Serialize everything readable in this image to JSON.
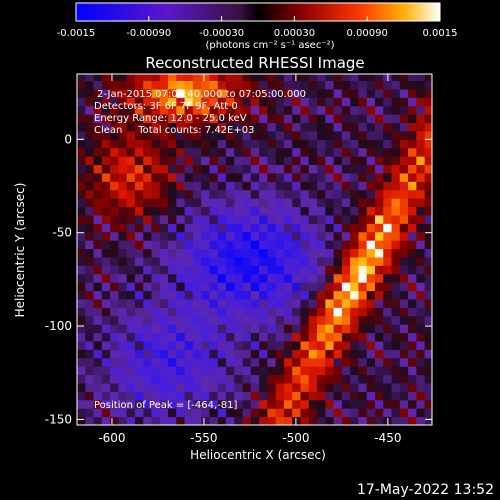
{
  "colorbar": {
    "ticks": [
      "-0.0015",
      "-0.00090",
      "-0.00030",
      "0.00030",
      "0.00090",
      "0.0015"
    ],
    "unit_label": "(photons cm⁻² s⁻¹ asec⁻²)",
    "range": [
      -0.0015,
      0.0015
    ]
  },
  "chart_data": {
    "type": "heatmap",
    "title": "Reconstructed RHESSI Image",
    "xlabel": "Heliocentric X (arcsec)",
    "ylabel": "Heliocentric Y (arcsec)",
    "xlim": [
      -619,
      -426
    ],
    "ylim": [
      -153,
      35
    ],
    "x_ticks": [
      "-600",
      "-550",
      "-500",
      "-450"
    ],
    "x_tick_values": [
      -600,
      -550,
      -500,
      -450
    ],
    "y_ticks": [
      "0",
      "-50",
      "-100",
      "-150"
    ],
    "y_tick_values": [
      0,
      -50,
      -100,
      -150
    ],
    "annotations": [
      "2-Jan-2015 07:00:40.000 to 07:05:00.000",
      "Detectors: 3F 6F 7F 9F, Att 0",
      "Energy Range: 12.0 - 25.0 keV",
      "Clean     Total counts: 7.42E+03"
    ],
    "peak_label": "Position of Peak = [-464,-81]",
    "peak": [
      -464,
      -81
    ],
    "grid": false
  },
  "footer": {
    "timestamp": "17-May-2022 13:52"
  }
}
